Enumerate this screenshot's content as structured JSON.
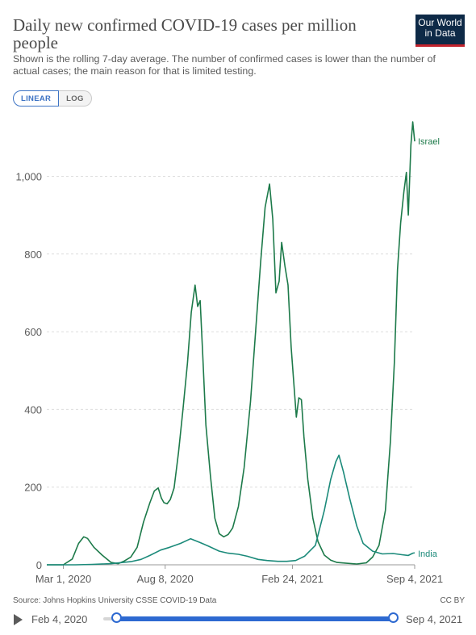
{
  "header": {
    "title": "Daily new confirmed COVID-19 cases per million people",
    "subtitle": "Shown is the rolling 7-day average. The number of confirmed cases is lower than the number of actual cases; the main reason for that is limited testing.",
    "logo_line1": "Our World",
    "logo_line2": "in Data"
  },
  "scale_toggle": {
    "linear_label": "LINEAR",
    "log_label": "LOG",
    "selected": "LINEAR"
  },
  "footer": {
    "source": "Source: Johns Hopkins University CSSE COVID-19 Data",
    "license": "CC BY"
  },
  "timeline": {
    "start_label": "Feb 4, 2020",
    "end_label": "Sep 4, 2021"
  },
  "colors": {
    "israel": "#1d7a4a",
    "india": "#1b8a7a",
    "grid": "#dddddd",
    "accent": "#2d69d1"
  },
  "chart_data": {
    "type": "line",
    "title": "Daily new confirmed COVID-19 cases per million people",
    "xlabel": "",
    "ylabel": "",
    "x_range": [
      "2020-02-04",
      "2021-09-04"
    ],
    "ylim": [
      0,
      1150
    ],
    "y_ticks": [
      0,
      200,
      400,
      600,
      800,
      1000
    ],
    "y_tick_labels": [
      "0",
      "200",
      "400",
      "600",
      "800",
      "1,000"
    ],
    "x_ticks": [
      {
        "date": "2020-03-01",
        "label": "Mar 1, 2020"
      },
      {
        "date": "2020-08-08",
        "label": "Aug 8, 2020"
      },
      {
        "date": "2021-02-24",
        "label": "Feb 24, 2021"
      },
      {
        "date": "2021-09-04",
        "label": "Sep 4, 2021"
      }
    ],
    "grid": "horizontal",
    "series": [
      {
        "name": "Israel",
        "label": "Israel",
        "color_key": "israel",
        "points": [
          [
            "2020-02-04",
            0
          ],
          [
            "2020-03-01",
            0
          ],
          [
            "2020-03-15",
            15
          ],
          [
            "2020-03-25",
            55
          ],
          [
            "2020-04-02",
            72
          ],
          [
            "2020-04-08",
            68
          ],
          [
            "2020-04-18",
            45
          ],
          [
            "2020-05-01",
            25
          ],
          [
            "2020-05-15",
            6
          ],
          [
            "2020-05-26",
            3
          ],
          [
            "2020-06-05",
            10
          ],
          [
            "2020-06-15",
            20
          ],
          [
            "2020-06-25",
            45
          ],
          [
            "2020-07-05",
            110
          ],
          [
            "2020-07-15",
            160
          ],
          [
            "2020-07-22",
            190
          ],
          [
            "2020-07-28",
            198
          ],
          [
            "2020-08-02",
            172
          ],
          [
            "2020-08-06",
            160
          ],
          [
            "2020-08-11",
            157
          ],
          [
            "2020-08-16",
            168
          ],
          [
            "2020-08-22",
            198
          ],
          [
            "2020-08-29",
            290
          ],
          [
            "2020-09-05",
            400
          ],
          [
            "2020-09-12",
            520
          ],
          [
            "2020-09-18",
            650
          ],
          [
            "2020-09-24",
            720
          ],
          [
            "2020-09-28",
            665
          ],
          [
            "2020-10-02",
            680
          ],
          [
            "2020-10-06",
            540
          ],
          [
            "2020-10-11",
            360
          ],
          [
            "2020-10-18",
            230
          ],
          [
            "2020-10-25",
            120
          ],
          [
            "2020-11-01",
            80
          ],
          [
            "2020-11-08",
            72
          ],
          [
            "2020-11-15",
            78
          ],
          [
            "2020-11-22",
            95
          ],
          [
            "2020-12-01",
            150
          ],
          [
            "2020-12-10",
            250
          ],
          [
            "2020-12-20",
            420
          ],
          [
            "2020-12-28",
            600
          ],
          [
            "2021-01-05",
            780
          ],
          [
            "2021-01-12",
            920
          ],
          [
            "2021-01-19",
            980
          ],
          [
            "2021-01-24",
            890
          ],
          [
            "2021-01-29",
            700
          ],
          [
            "2021-02-03",
            730
          ],
          [
            "2021-02-07",
            830
          ],
          [
            "2021-02-12",
            770
          ],
          [
            "2021-02-17",
            720
          ],
          [
            "2021-02-22",
            560
          ],
          [
            "2021-02-26",
            470
          ],
          [
            "2021-03-02",
            380
          ],
          [
            "2021-03-06",
            430
          ],
          [
            "2021-03-10",
            425
          ],
          [
            "2021-03-14",
            330
          ],
          [
            "2021-03-20",
            220
          ],
          [
            "2021-03-28",
            120
          ],
          [
            "2021-04-05",
            60
          ],
          [
            "2021-04-15",
            25
          ],
          [
            "2021-04-25",
            12
          ],
          [
            "2021-05-05",
            6
          ],
          [
            "2021-05-20",
            4
          ],
          [
            "2021-06-05",
            2
          ],
          [
            "2021-06-20",
            5
          ],
          [
            "2021-06-30",
            20
          ],
          [
            "2021-07-10",
            50
          ],
          [
            "2021-07-20",
            140
          ],
          [
            "2021-07-28",
            320
          ],
          [
            "2021-08-03",
            520
          ],
          [
            "2021-08-08",
            760
          ],
          [
            "2021-08-13",
            880
          ],
          [
            "2021-08-18",
            960
          ],
          [
            "2021-08-22",
            1010
          ],
          [
            "2021-08-25",
            900
          ],
          [
            "2021-08-29",
            1080
          ],
          [
            "2021-09-01",
            1140
          ],
          [
            "2021-09-04",
            1090
          ]
        ]
      },
      {
        "name": "India",
        "label": "India",
        "color_key": "india",
        "points": [
          [
            "2020-02-04",
            0
          ],
          [
            "2020-03-20",
            0
          ],
          [
            "2020-04-15",
            1
          ],
          [
            "2020-05-15",
            3
          ],
          [
            "2020-06-15",
            8
          ],
          [
            "2020-07-01",
            14
          ],
          [
            "2020-07-15",
            24
          ],
          [
            "2020-08-01",
            38
          ],
          [
            "2020-08-15",
            45
          ],
          [
            "2020-09-01",
            55
          ],
          [
            "2020-09-17",
            67
          ],
          [
            "2020-10-01",
            58
          ],
          [
            "2020-10-15",
            48
          ],
          [
            "2020-11-01",
            35
          ],
          [
            "2020-11-15",
            30
          ],
          [
            "2020-12-01",
            27
          ],
          [
            "2020-12-15",
            22
          ],
          [
            "2021-01-01",
            14
          ],
          [
            "2021-01-15",
            11
          ],
          [
            "2021-02-01",
            9
          ],
          [
            "2021-02-15",
            9
          ],
          [
            "2021-03-01",
            11
          ],
          [
            "2021-03-15",
            22
          ],
          [
            "2021-04-01",
            50
          ],
          [
            "2021-04-15",
            140
          ],
          [
            "2021-04-25",
            220
          ],
          [
            "2021-05-03",
            265
          ],
          [
            "2021-05-08",
            282
          ],
          [
            "2021-05-15",
            240
          ],
          [
            "2021-05-25",
            170
          ],
          [
            "2021-06-05",
            100
          ],
          [
            "2021-06-15",
            55
          ],
          [
            "2021-06-30",
            35
          ],
          [
            "2021-07-15",
            28
          ],
          [
            "2021-08-01",
            29
          ],
          [
            "2021-08-15",
            26
          ],
          [
            "2021-08-25",
            24
          ],
          [
            "2021-09-01",
            30
          ],
          [
            "2021-09-04",
            31
          ]
        ]
      }
    ]
  }
}
